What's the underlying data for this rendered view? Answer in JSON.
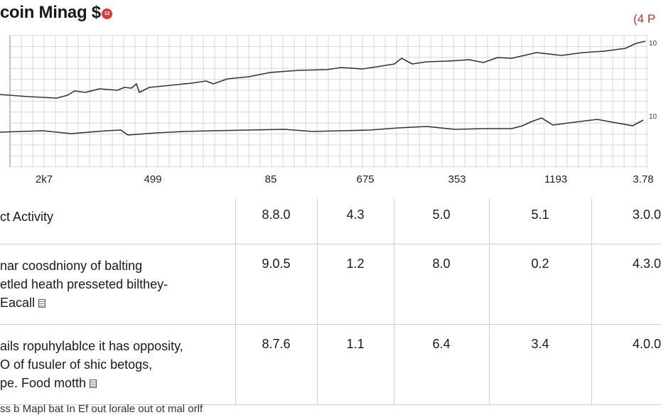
{
  "header": {
    "title": "coin Minag $",
    "badge": "13",
    "page_count": "(4 P"
  },
  "chart": {
    "x_labels": [
      "2k7",
      "499",
      "85",
      "675",
      "353",
      "1193",
      "3.78"
    ],
    "end_labels": [
      "10",
      "10"
    ],
    "colors": {
      "line": "#333333",
      "grid": "#d7d7d7"
    }
  },
  "table": {
    "header": {
      "label": "ct Activity",
      "values": [
        "8.8.0",
        "4.3",
        "5.0",
        "5.1",
        "3.0.0"
      ]
    },
    "rows": [
      {
        "lines": [
          "nar coosdniony of balting",
          "etled heath presseted bilthey-",
          "Eacall"
        ],
        "values": [
          "9.0.5",
          "1.2",
          "8.0",
          "0.2",
          "4.3.0"
        ]
      },
      {
        "lines": [
          "ails ropuhylablce it has opposity,",
          "O of fusuler of shic betogs,",
          "pe. Food motth"
        ],
        "values": [
          "8.7.6",
          "1.1",
          "6.4",
          "3.4",
          "4.0.0"
        ]
      }
    ]
  },
  "footer": {
    "text": "ss b Mapl bat In Ef out lorale out ot mal orlf"
  }
}
